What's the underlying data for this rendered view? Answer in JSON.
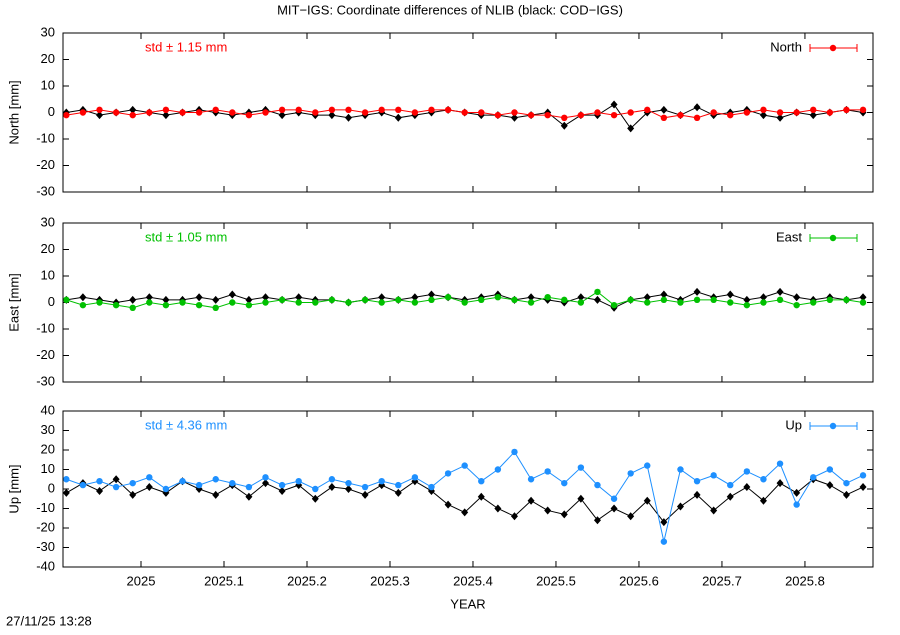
{
  "title": "MIT−IGS: Coordinate differences of NLIB (black: COD−IGS)",
  "timestamp": "27/11/25 13:28",
  "chart_data": [
    {
      "type": "line",
      "ylabel": "North [mm]",
      "annotation": "std ± 1.15 mm",
      "xlim": [
        2024.906,
        2025.882
      ],
      "xticks": [
        2025,
        2025.1,
        2025.2,
        2025.3,
        2025.4,
        2025.5,
        2025.6,
        2025.7,
        2025.8
      ],
      "ylim": [
        -30,
        30
      ],
      "yticks": [
        -30,
        -20,
        -10,
        0,
        10,
        20,
        30
      ],
      "legend": "upper right",
      "x": [
        2024.91,
        2024.93,
        2024.95,
        2024.97,
        2024.99,
        2025.01,
        2025.03,
        2025.05,
        2025.07,
        2025.09,
        2025.11,
        2025.13,
        2025.15,
        2025.17,
        2025.19,
        2025.21,
        2025.23,
        2025.25,
        2025.27,
        2025.29,
        2025.31,
        2025.33,
        2025.35,
        2025.37,
        2025.39,
        2025.41,
        2025.43,
        2025.45,
        2025.47,
        2025.49,
        2025.51,
        2025.53,
        2025.55,
        2025.57,
        2025.59,
        2025.61,
        2025.63,
        2025.65,
        2025.67,
        2025.69,
        2025.71,
        2025.73,
        2025.75,
        2025.77,
        2025.79,
        2025.81,
        2025.83,
        2025.85,
        2025.87
      ],
      "series": [
        {
          "color": "#000000",
          "values": [
            0,
            1,
            -1,
            0,
            1,
            0,
            -1,
            0,
            1,
            0,
            -1,
            0,
            1,
            -1,
            0,
            -1,
            -1,
            -2,
            -1,
            0,
            -2,
            -1,
            0,
            1,
            0,
            -1,
            -1,
            -2,
            -1,
            0,
            -5,
            -1,
            -1,
            3,
            -6,
            0,
            1,
            -1,
            2,
            -1,
            0,
            1,
            -1,
            -2,
            0,
            -1,
            0,
            1,
            0
          ]
        },
        {
          "name": "North",
          "color": "#ff0000",
          "values": [
            -1,
            0,
            1,
            0,
            -1,
            0,
            1,
            0,
            0,
            1,
            0,
            -1,
            0,
            1,
            1,
            0,
            1,
            1,
            0,
            1,
            1,
            0,
            1,
            1,
            0,
            0,
            -1,
            0,
            -1,
            -1,
            -2,
            -1,
            0,
            -1,
            0,
            1,
            -2,
            -1,
            -2,
            0,
            -1,
            0,
            1,
            0,
            0,
            1,
            0,
            1,
            1
          ]
        }
      ]
    },
    {
      "type": "line",
      "ylabel": "East [mm]",
      "annotation": "std ± 1.05 mm",
      "xlim": [
        2024.906,
        2025.882
      ],
      "xticks": [
        2025,
        2025.1,
        2025.2,
        2025.3,
        2025.4,
        2025.5,
        2025.6,
        2025.7,
        2025.8
      ],
      "ylim": [
        -30,
        30
      ],
      "yticks": [
        -30,
        -20,
        -10,
        0,
        10,
        20,
        30
      ],
      "legend": "upper right",
      "x": [
        2024.91,
        2024.93,
        2024.95,
        2024.97,
        2024.99,
        2025.01,
        2025.03,
        2025.05,
        2025.07,
        2025.09,
        2025.11,
        2025.13,
        2025.15,
        2025.17,
        2025.19,
        2025.21,
        2025.23,
        2025.25,
        2025.27,
        2025.29,
        2025.31,
        2025.33,
        2025.35,
        2025.37,
        2025.39,
        2025.41,
        2025.43,
        2025.45,
        2025.47,
        2025.49,
        2025.51,
        2025.53,
        2025.55,
        2025.57,
        2025.59,
        2025.61,
        2025.63,
        2025.65,
        2025.67,
        2025.69,
        2025.71,
        2025.73,
        2025.75,
        2025.77,
        2025.79,
        2025.81,
        2025.83,
        2025.85,
        2025.87
      ],
      "series": [
        {
          "color": "#000000",
          "values": [
            1,
            2,
            1,
            0,
            1,
            2,
            1,
            1,
            2,
            1,
            3,
            1,
            2,
            1,
            2,
            1,
            1,
            0,
            1,
            2,
            1,
            2,
            3,
            2,
            1,
            2,
            3,
            1,
            2,
            1,
            0,
            2,
            1,
            -2,
            1,
            2,
            3,
            1,
            4,
            2,
            3,
            1,
            2,
            4,
            2,
            1,
            2,
            1,
            2
          ]
        },
        {
          "name": "East",
          "color": "#00c000",
          "values": [
            1,
            -1,
            0,
            -1,
            -2,
            0,
            -1,
            0,
            -1,
            -2,
            0,
            -1,
            0,
            1,
            0,
            0,
            1,
            0,
            1,
            0,
            1,
            0,
            1,
            2,
            0,
            1,
            2,
            1,
            0,
            2,
            1,
            0,
            4,
            -1,
            1,
            0,
            1,
            0,
            1,
            1,
            0,
            -1,
            0,
            1,
            -1,
            0,
            1,
            1,
            0
          ]
        }
      ]
    },
    {
      "type": "line",
      "ylabel": "Up [mm]",
      "annotation": "std ± 4.36 mm",
      "xlabel": "YEAR",
      "xlim": [
        2024.906,
        2025.882
      ],
      "xticks": [
        2025,
        2025.1,
        2025.2,
        2025.3,
        2025.4,
        2025.5,
        2025.6,
        2025.7,
        2025.8
      ],
      "ylim": [
        -40,
        40
      ],
      "yticks": [
        -40,
        -30,
        -20,
        -10,
        0,
        10,
        20,
        30,
        40
      ],
      "legend": "upper right",
      "x": [
        2024.91,
        2024.93,
        2024.95,
        2024.97,
        2024.99,
        2025.01,
        2025.03,
        2025.05,
        2025.07,
        2025.09,
        2025.11,
        2025.13,
        2025.15,
        2025.17,
        2025.19,
        2025.21,
        2025.23,
        2025.25,
        2025.27,
        2025.29,
        2025.31,
        2025.33,
        2025.35,
        2025.37,
        2025.39,
        2025.41,
        2025.43,
        2025.45,
        2025.47,
        2025.49,
        2025.51,
        2025.53,
        2025.55,
        2025.57,
        2025.59,
        2025.61,
        2025.63,
        2025.65,
        2025.67,
        2025.69,
        2025.71,
        2025.73,
        2025.75,
        2025.77,
        2025.79,
        2025.81,
        2025.83,
        2025.85,
        2025.87
      ],
      "series": [
        {
          "color": "#000000",
          "values": [
            -2,
            3,
            -1,
            5,
            -3,
            1,
            -2,
            4,
            0,
            -3,
            2,
            -4,
            3,
            -1,
            2,
            -5,
            1,
            0,
            -3,
            2,
            -2,
            4,
            -1,
            -8,
            -12,
            -4,
            -10,
            -14,
            -6,
            -11,
            -13,
            -5,
            -16,
            -10,
            -14,
            -6,
            -17,
            -9,
            -3,
            -11,
            -4,
            1,
            -6,
            3,
            -2,
            5,
            2,
            -3,
            1
          ]
        },
        {
          "name": "Up",
          "color": "#1e90ff",
          "values": [
            5,
            2,
            4,
            1,
            3,
            6,
            0,
            4,
            2,
            5,
            3,
            1,
            6,
            2,
            4,
            0,
            5,
            3,
            1,
            4,
            2,
            6,
            1,
            8,
            12,
            4,
            10,
            19,
            5,
            9,
            3,
            11,
            2,
            -5,
            8,
            12,
            -27,
            10,
            4,
            7,
            2,
            9,
            5,
            13,
            -8,
            6,
            10,
            3,
            7
          ]
        }
      ]
    }
  ]
}
